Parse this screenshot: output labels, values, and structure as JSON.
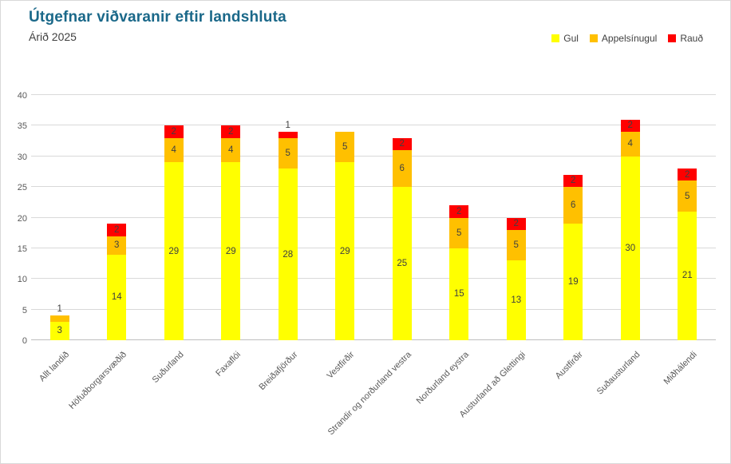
{
  "header": {
    "title": "Útgefnar viðvaranir eftir landshluta",
    "subtitle": "Árið 2025"
  },
  "colors": {
    "title": "#1a6889",
    "data_label": "#404040",
    "axis_text": "#595959",
    "gridline": "#d9d9d9"
  },
  "chart_data": {
    "type": "bar",
    "stacked": true,
    "title": "Útgefnar viðvaranir eftir landshluta",
    "subtitle": "Árið 2025",
    "categories": [
      "Allt landið",
      "Höfuðborgarsvæðið",
      "Suðurland",
      "Faxaflói",
      "Breiðafjörður",
      "Vestfirðir",
      "Strandir og norðurland vestra",
      "Norðurland eystra",
      "Austurland að Glettingi",
      "Austfirðir",
      "Suðausturland",
      "Miðhálendi"
    ],
    "series": [
      {
        "key": "gul",
        "name": "Gul",
        "color": "#ffff00",
        "values": [
          3,
          14,
          29,
          29,
          28,
          29,
          25,
          15,
          13,
          19,
          30,
          21
        ]
      },
      {
        "key": "appelsinugul",
        "name": "Appelsínugul",
        "color": "#ffc000",
        "values": [
          1,
          3,
          4,
          4,
          5,
          5,
          6,
          5,
          5,
          6,
          4,
          5
        ]
      },
      {
        "key": "raud",
        "name": "Rauð",
        "color": "#ff0000",
        "values": [
          0,
          2,
          2,
          2,
          1,
          0,
          2,
          2,
          2,
          2,
          2,
          2
        ]
      }
    ],
    "totals": [
      4,
      19,
      35,
      35,
      34,
      34,
      33,
      22,
      20,
      27,
      36,
      28
    ],
    "xlabel": "",
    "ylabel": "",
    "ylim": [
      0,
      40
    ],
    "ytick_step": 5,
    "yticks": [
      0,
      5,
      10,
      15,
      20,
      25,
      30,
      35,
      40
    ],
    "grid": true,
    "legend_position": "top-right",
    "xlabel_rotation_deg": -45
  }
}
